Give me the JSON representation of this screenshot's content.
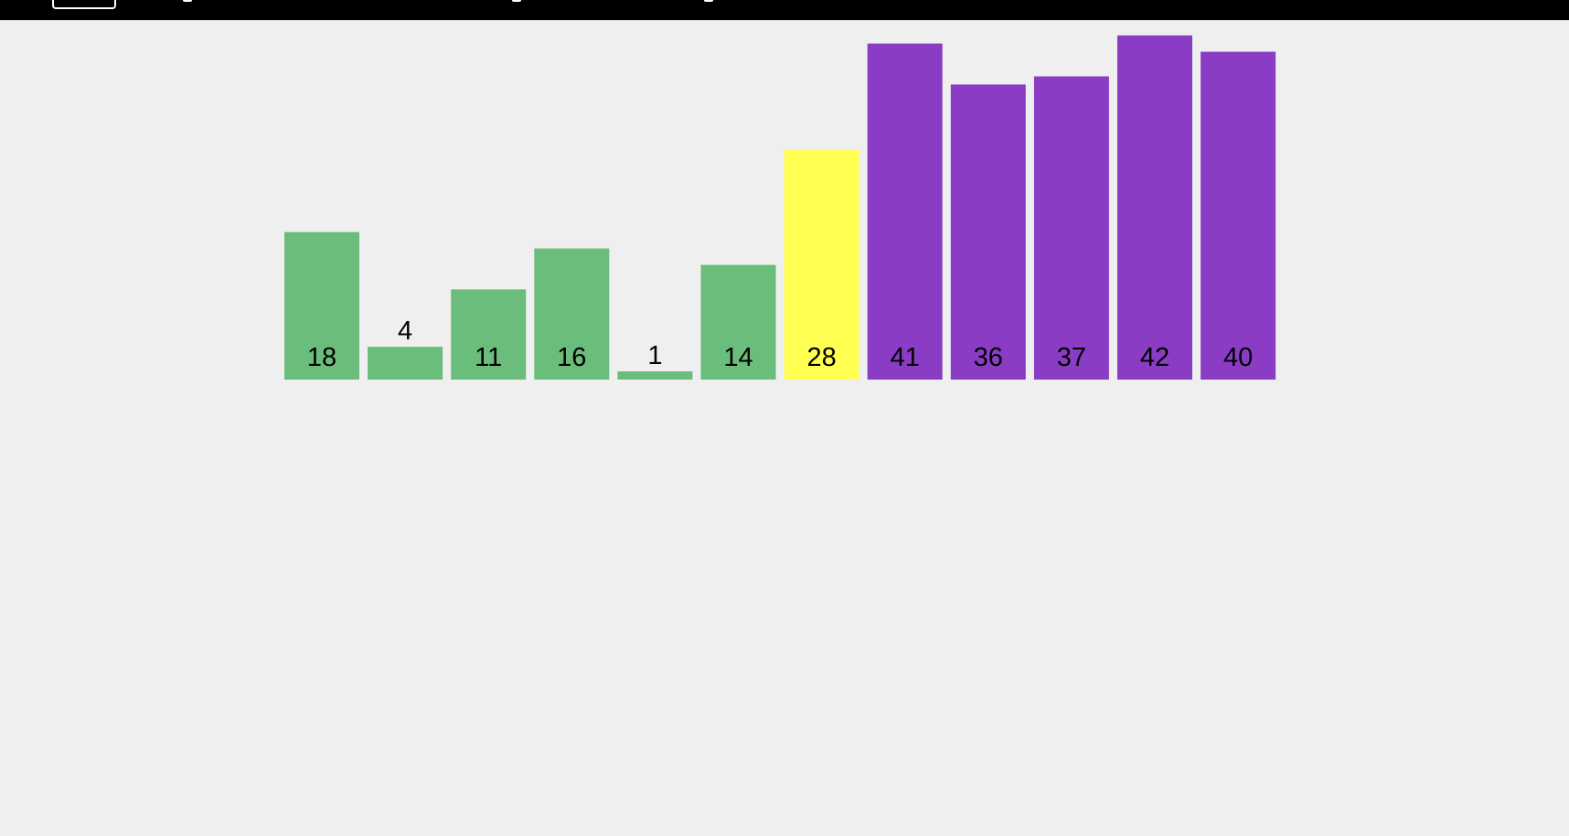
{
  "chart_data": {
    "type": "bar",
    "values": [
      18,
      4,
      11,
      16,
      1,
      14,
      28,
      41,
      36,
      37,
      42,
      40
    ],
    "labels": [
      "18",
      "4",
      "11",
      "16",
      "1",
      "14",
      "28",
      "41",
      "36",
      "37",
      "42",
      "40"
    ],
    "states": [
      "unsorted",
      "unsorted",
      "unsorted",
      "unsorted",
      "unsorted",
      "unsorted",
      "pivot",
      "sorted",
      "sorted",
      "sorted",
      "sorted",
      "sorted"
    ],
    "colors": {
      "unsorted": "#6abd7a",
      "pivot": "#ffff52",
      "sorted": "#8a3cc4"
    },
    "ylim": [
      0,
      42
    ]
  }
}
